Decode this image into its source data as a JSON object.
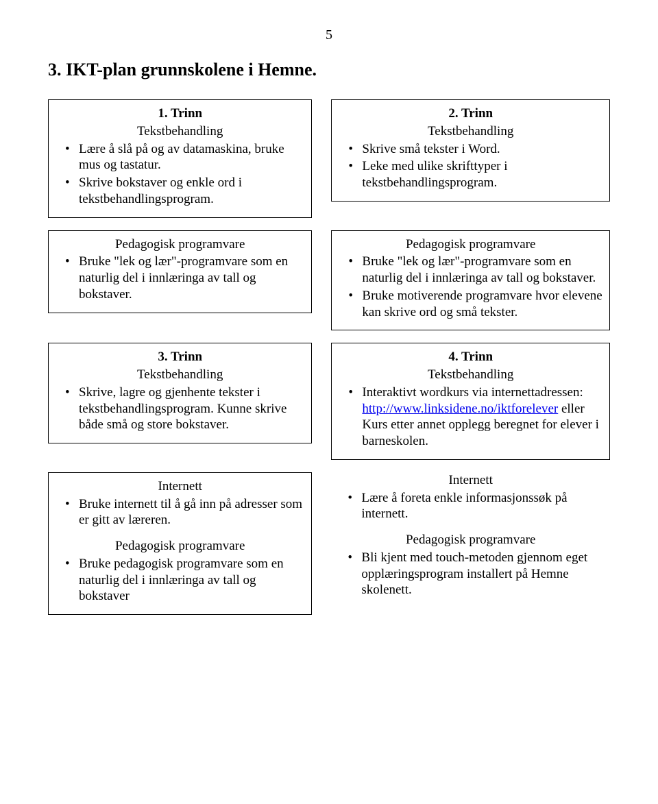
{
  "pageNumber": "5",
  "heading": "3.   IKT-plan grunnskolene i Hemne.",
  "trinn1": {
    "title": "1. Trinn",
    "sub": "Tekstbehandling",
    "items": [
      "Lære å slå på og av datamaskina, bruke mus og tastatur.",
      "Skrive   bokstaver og enkle ord i tekstbehandlingsprogram."
    ]
  },
  "trinn2": {
    "title": "2. Trinn",
    "sub": "Tekstbehandling",
    "items": [
      "Skrive små tekster i Word.",
      "Leke med ulike skrifttyper i tekstbehandlingsprogram."
    ]
  },
  "ped1": {
    "sub": "Pedagogisk programvare",
    "items": [
      "Bruke \"lek og lær\"-programvare som en naturlig del i innlæringa av tall og bokstaver."
    ]
  },
  "ped2": {
    "sub": "Pedagogisk programvare",
    "items": [
      "Bruke \"lek og lær\"-programvare som en naturlig del i innlæringa av tall og bokstaver.",
      "Bruke motiverende programvare hvor elevene kan skrive ord og små tekster."
    ]
  },
  "trinn3": {
    "title": "3. Trinn",
    "sub": "Tekstbehandling",
    "items": [
      "Skrive, lagre og gjenhente tekster i tekstbehandlingsprogram. Kunne skrive både små og store bokstaver."
    ]
  },
  "trinn4": {
    "title": "4. Trinn",
    "sub": "Tekstbehandling",
    "item_pre": "Interaktivt wordkurs via internettadressen: ",
    "link_text": "http://www.linksidene.no/iktforelever",
    "link_href": "http://www.linksidene.no/iktforelever",
    "item_mid": " eller",
    "item_post": "Kurs etter annet opplegg beregnet for elever i barneskolen."
  },
  "net3": {
    "sub": "Internett",
    "items": [
      "Bruke internett til å gå inn på adresser som er gitt av læreren."
    ]
  },
  "ped3": {
    "sub": "Pedagogisk programvare",
    "items": [
      "Bruke pedagogisk programvare som en naturlig del i innlæringa av tall og bokstaver"
    ]
  },
  "net4": {
    "sub": "Internett",
    "items": [
      "Lære å foreta enkle informasjonssøk på internett."
    ]
  },
  "ped4": {
    "sub": "Pedagogisk programvare",
    "items": [
      "Bli kjent med touch-metoden gjennom eget opplæringsprogram installert på Hemne skolenett."
    ]
  }
}
